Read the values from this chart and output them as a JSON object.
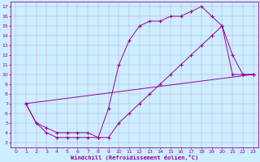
{
  "bg_color": "#cceeff",
  "line_color": "#990099",
  "xlim": [
    -0.5,
    23.5
  ],
  "ylim": [
    2.5,
    17.5
  ],
  "xticks": [
    0,
    1,
    2,
    3,
    4,
    5,
    6,
    7,
    8,
    9,
    10,
    11,
    12,
    13,
    14,
    15,
    16,
    17,
    18,
    19,
    20,
    21,
    22,
    23
  ],
  "yticks": [
    3,
    4,
    5,
    6,
    7,
    8,
    9,
    10,
    11,
    12,
    13,
    14,
    15,
    16,
    17
  ],
  "xlabel": "Windchill (Refroidissement éolien,°C)",
  "line1_x": [
    1,
    2,
    3,
    4,
    5,
    6,
    7,
    8,
    9,
    10,
    11,
    12,
    13,
    14,
    15,
    16,
    17,
    18,
    19,
    20,
    21,
    22,
    23
  ],
  "line1_y": [
    7,
    5,
    4,
    3.5,
    3.5,
    3.5,
    3.5,
    3.5,
    6.5,
    11,
    13.5,
    15,
    15.5,
    15.5,
    16,
    16,
    16.5,
    17,
    16,
    15,
    10,
    10,
    10
  ],
  "line2_x": [
    1,
    2,
    3,
    4,
    5,
    6,
    7,
    8,
    9,
    10,
    11,
    12,
    13,
    14,
    15,
    16,
    17,
    18,
    19,
    20,
    21,
    22,
    23
  ],
  "line2_y": [
    7,
    5,
    4.5,
    4,
    4,
    4,
    4,
    3.5,
    3.5,
    5,
    6,
    7,
    8,
    9,
    10,
    11,
    12,
    13,
    14,
    15,
    12,
    10,
    10
  ],
  "line3_x": [
    1,
    23
  ],
  "line3_y": [
    7,
    10
  ]
}
